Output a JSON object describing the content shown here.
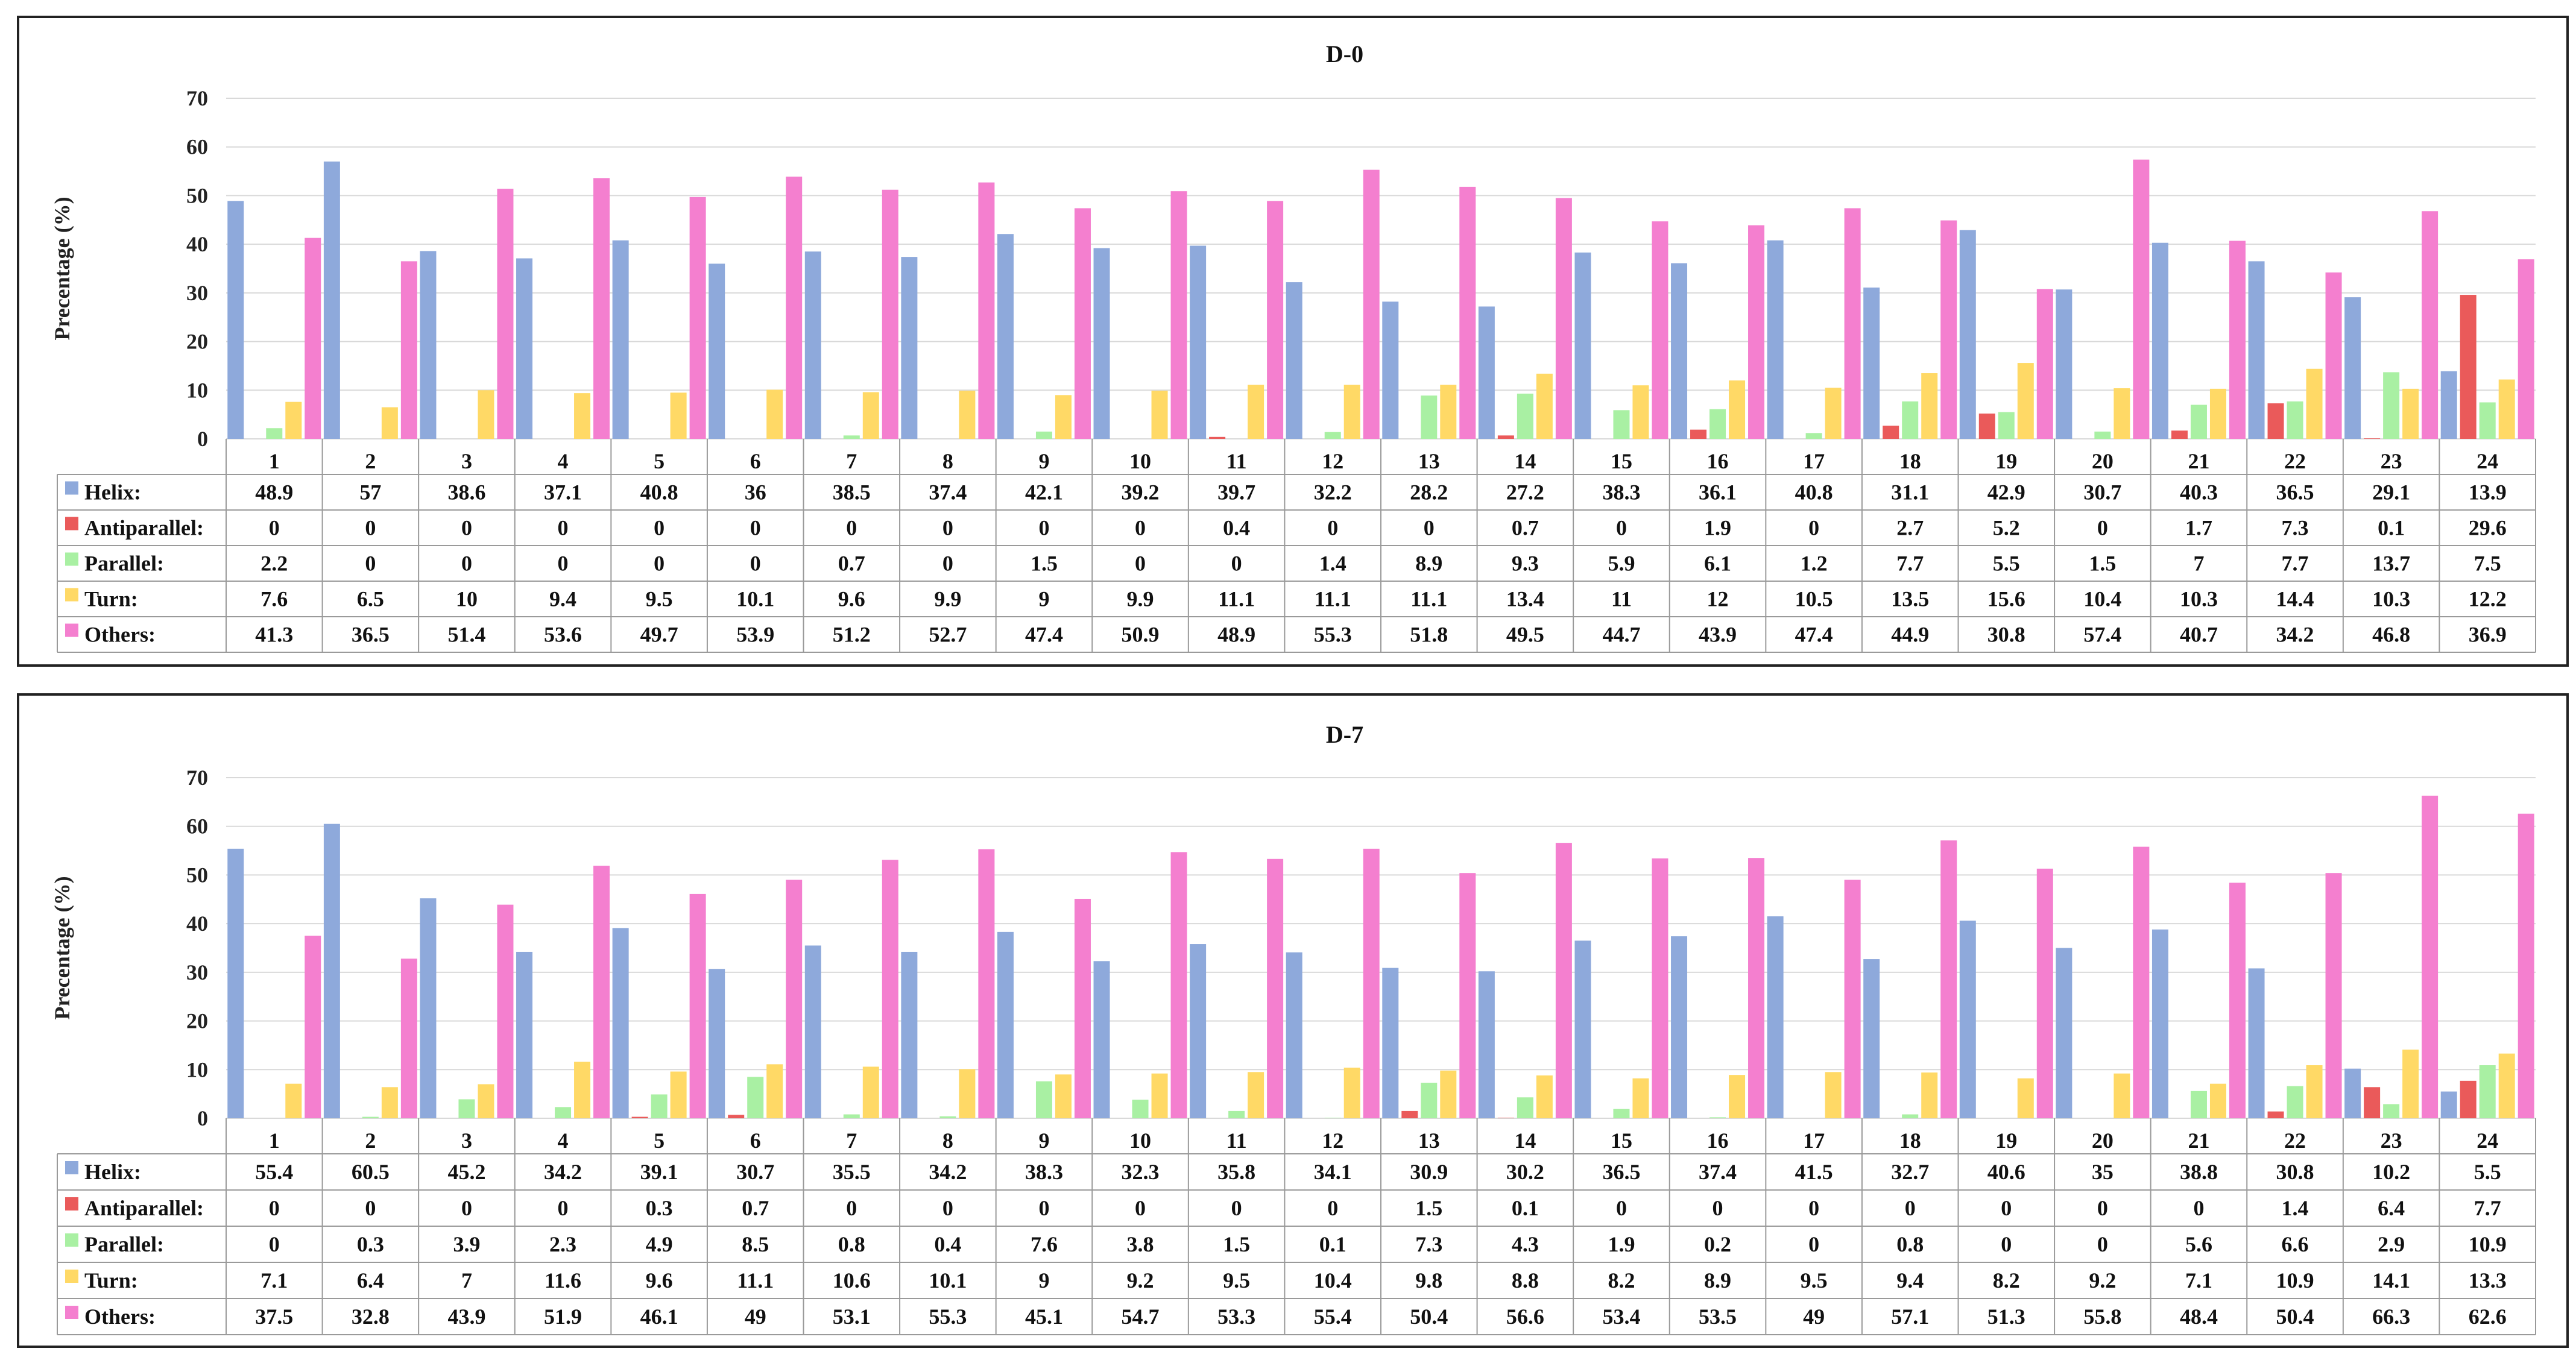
{
  "chart_data": [
    {
      "type": "bar",
      "title": "D-0",
      "ylabel": "Precentage (%)",
      "ylim": [
        0,
        70
      ],
      "yticks": [
        0,
        10,
        20,
        30,
        40,
        50,
        60,
        70
      ],
      "grid": true,
      "legend": "table-below",
      "categories": [
        "1",
        "2",
        "3",
        "4",
        "5",
        "6",
        "7",
        "8",
        "9",
        "10",
        "11",
        "12",
        "13",
        "14",
        "15",
        "16",
        "17",
        "18",
        "19",
        "20",
        "21",
        "22",
        "23",
        "24"
      ],
      "series": [
        {
          "name": "Helix:",
          "color": "#8ea9db",
          "values": [
            48.9,
            57,
            38.6,
            37.1,
            40.8,
            36,
            38.5,
            37.4,
            42.1,
            39.2,
            39.7,
            32.2,
            28.2,
            27.2,
            38.3,
            36.1,
            40.8,
            31.1,
            42.9,
            30.7,
            40.3,
            36.5,
            29.1,
            13.9
          ]
        },
        {
          "name": "Antiparallel:",
          "color": "#ea5a5a",
          "values": [
            0,
            0,
            0,
            0,
            0,
            0,
            0,
            0,
            0,
            0,
            0.4,
            0,
            0,
            0.7,
            0,
            1.9,
            0,
            2.7,
            5.2,
            0,
            1.7,
            7.3,
            0.1,
            29.6
          ]
        },
        {
          "name": "Parallel:",
          "color": "#a9f0a3",
          "values": [
            2.2,
            0,
            0,
            0,
            0,
            0,
            0.7,
            0,
            1.5,
            0,
            0,
            1.4,
            8.9,
            9.3,
            5.9,
            6.1,
            1.2,
            7.7,
            5.5,
            1.5,
            7,
            7.7,
            13.7,
            7.5
          ]
        },
        {
          "name": "Turn:",
          "color": "#ffd966",
          "values": [
            7.6,
            6.5,
            10,
            9.4,
            9.5,
            10.1,
            9.6,
            9.9,
            9,
            9.9,
            11.1,
            11.1,
            11.1,
            13.4,
            11,
            12,
            10.5,
            13.5,
            15.6,
            10.4,
            10.3,
            14.4,
            10.3,
            12.2
          ]
        },
        {
          "name": "Others:",
          "color": "#f47fcf",
          "values": [
            41.3,
            36.5,
            51.4,
            53.6,
            49.7,
            53.9,
            51.2,
            52.7,
            47.4,
            50.9,
            48.9,
            55.3,
            51.8,
            49.5,
            44.7,
            43.9,
            47.4,
            44.9,
            30.8,
            57.4,
            40.7,
            34.2,
            46.8,
            36.9
          ]
        }
      ]
    },
    {
      "type": "bar",
      "title": "D-7",
      "ylabel": "Precentage (%)",
      "ylim": [
        0,
        70
      ],
      "yticks": [
        0,
        10,
        20,
        30,
        40,
        50,
        60,
        70
      ],
      "grid": true,
      "legend": "table-below",
      "categories": [
        "1",
        "2",
        "3",
        "4",
        "5",
        "6",
        "7",
        "8",
        "9",
        "10",
        "11",
        "12",
        "13",
        "14",
        "15",
        "16",
        "17",
        "18",
        "19",
        "20",
        "21",
        "22",
        "23",
        "24"
      ],
      "series": [
        {
          "name": "Helix:",
          "color": "#8ea9db",
          "values": [
            55.4,
            60.5,
            45.2,
            34.2,
            39.1,
            30.7,
            35.5,
            34.2,
            38.3,
            32.3,
            35.8,
            34.1,
            30.9,
            30.2,
            36.5,
            37.4,
            41.5,
            32.7,
            40.6,
            35,
            38.8,
            30.8,
            10.2,
            5.5
          ]
        },
        {
          "name": "Antiparallel:",
          "color": "#ea5a5a",
          "values": [
            0,
            0,
            0,
            0,
            0.3,
            0.7,
            0,
            0,
            0,
            0,
            0,
            0,
            1.5,
            0.1,
            0,
            0,
            0,
            0,
            0,
            0,
            0,
            1.4,
            6.4,
            7.7
          ]
        },
        {
          "name": "Parallel:",
          "color": "#a9f0a3",
          "values": [
            0,
            0.3,
            3.9,
            2.3,
            4.9,
            8.5,
            0.8,
            0.4,
            7.6,
            3.8,
            1.5,
            0.1,
            7.3,
            4.3,
            1.9,
            0.2,
            0,
            0.8,
            0,
            0,
            5.6,
            6.6,
            2.9,
            10.9
          ]
        },
        {
          "name": "Turn:",
          "color": "#ffd966",
          "values": [
            7.1,
            6.4,
            7,
            11.6,
            9.6,
            11.1,
            10.6,
            10.1,
            9,
            9.2,
            9.5,
            10.4,
            9.8,
            8.8,
            8.2,
            8.9,
            9.5,
            9.4,
            8.2,
            9.2,
            7.1,
            10.9,
            14.1,
            13.3
          ]
        },
        {
          "name": "Others:",
          "color": "#f47fcf",
          "values": [
            37.5,
            32.8,
            43.9,
            51.9,
            46.1,
            49,
            53.1,
            55.3,
            45.1,
            54.7,
            53.3,
            55.4,
            50.4,
            56.6,
            53.4,
            53.5,
            49,
            57.1,
            51.3,
            55.8,
            48.4,
            50.4,
            66.3,
            62.6
          ]
        }
      ]
    }
  ]
}
